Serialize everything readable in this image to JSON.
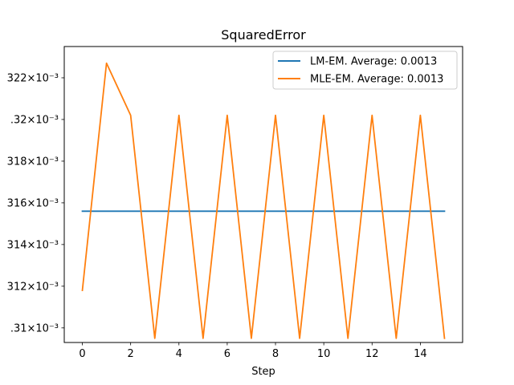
{
  "chart_data": {
    "type": "line",
    "title": "SquaredError",
    "xlabel": "Step",
    "ylabel": "",
    "x_ticks": [
      0,
      2,
      4,
      6,
      8,
      10,
      12,
      14
    ],
    "y_ticks": [
      {
        "value": 0.00131,
        "label": ".31×10⁻³"
      },
      {
        "value": 0.001312,
        "label": "312×10⁻³"
      },
      {
        "value": 0.001314,
        "label": "314×10⁻³"
      },
      {
        "value": 0.001316,
        "label": "316×10⁻³"
      },
      {
        "value": 0.001318,
        "label": "318×10⁻³"
      },
      {
        "value": 0.00132,
        "label": ".32×10⁻³"
      },
      {
        "value": 0.001322,
        "label": "322×10⁻³"
      }
    ],
    "xlim": [
      -0.75,
      15.75
    ],
    "ylim": [
      0.0013093,
      0.0013235
    ],
    "grid": false,
    "legend_position": "top-right",
    "x": [
      0,
      1,
      2,
      3,
      4,
      5,
      6,
      7,
      8,
      9,
      10,
      11,
      12,
      13,
      14,
      15
    ],
    "series": [
      {
        "name": "LM-EM. Average: 0.0013",
        "color": "#1f77b4",
        "values": [
          0.0013156,
          0.0013156,
          0.0013156,
          0.0013156,
          0.0013156,
          0.0013156,
          0.0013156,
          0.0013156,
          0.0013156,
          0.0013156,
          0.0013156,
          0.0013156,
          0.0013156,
          0.0013156,
          0.0013156,
          0.0013156
        ]
      },
      {
        "name": "MLE-EM. Average: 0.0013",
        "color": "#ff7f0e",
        "values": [
          0.0013118,
          0.0013227,
          0.0013202,
          0.0013095,
          0.0013202,
          0.0013095,
          0.0013202,
          0.0013095,
          0.0013202,
          0.0013095,
          0.0013202,
          0.0013095,
          0.0013202,
          0.0013095,
          0.0013202,
          0.0013095
        ]
      }
    ]
  }
}
